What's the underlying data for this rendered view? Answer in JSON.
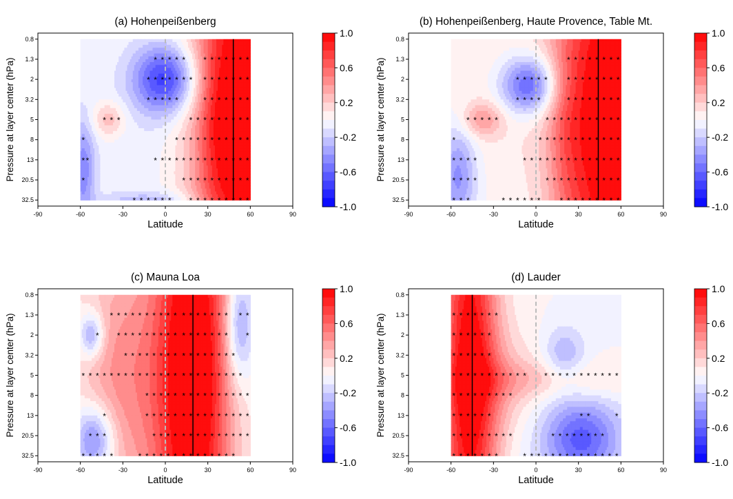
{
  "figure": {
    "colorbar_ticks": [
      "1.0",
      "0.6",
      "0.2",
      "-0.2",
      "-0.6",
      "-1.0"
    ],
    "colorbar_tick_values": [
      1.0,
      0.6,
      0.2,
      -0.2,
      -0.6,
      -1.0
    ],
    "colors": {
      "positive": "#ff0000",
      "negative": "#0000ff",
      "neutral": "#ffffff",
      "star": "#000000",
      "station_line": "#000000",
      "equator_line": "#bbbbbb"
    }
  },
  "chart_data": [
    {
      "type": "heatmap",
      "title": "(a) Hohenpeißenberg",
      "xlabel": "Latitude",
      "ylabel": "Pressure at layer center (hPa)",
      "x_ticks": [
        -90,
        -60,
        -30,
        0,
        30,
        60,
        90
      ],
      "y_ticks": [
        "0.8",
        "1.3",
        "2",
        "3.2",
        "5",
        "8",
        "13",
        "20.5",
        "32.5"
      ],
      "xlim": [
        -90,
        90
      ],
      "x_data_range": [
        -60,
        60
      ],
      "zlim": [
        -1,
        1
      ],
      "station_latitudes": [
        48
      ],
      "correlation_blobs": [
        {
          "x": 50,
          "y": 4,
          "sx": 22,
          "sy": 9,
          "value": 1.0
        },
        {
          "x": 58,
          "y": 4,
          "sx": 8,
          "sy": 9,
          "value": 0.25
        },
        {
          "x": 35,
          "y": 4,
          "sx": 8,
          "sy": 3,
          "value": 0.15
        },
        {
          "x": 0,
          "y": 2,
          "sx": 16,
          "sy": 1.2,
          "value": -0.75
        },
        {
          "x": -58,
          "y": 6.5,
          "sx": 6,
          "sy": 1.8,
          "value": -0.45
        },
        {
          "x": -40,
          "y": 4,
          "sx": 8,
          "sy": 0.6,
          "value": 0.3
        },
        {
          "x": -10,
          "y": 8.2,
          "sx": 25,
          "sy": 0.4,
          "value": -0.3
        },
        {
          "x": -20,
          "y": 4.5,
          "sx": 30,
          "sy": 4,
          "value": -0.06
        }
      ],
      "significance_markers": [
        {
          "y": 1,
          "x": [
            -7,
            -2,
            3,
            8,
            13,
            28,
            33,
            38,
            43,
            48,
            53,
            58
          ]
        },
        {
          "y": 2,
          "x": [
            -12,
            -7,
            -2,
            3,
            8,
            13,
            18,
            28,
            33,
            38,
            43,
            48,
            53,
            58
          ]
        },
        {
          "y": 3,
          "x": [
            -12,
            -7,
            -2,
            3,
            8,
            28,
            33,
            38,
            43,
            48,
            53,
            58
          ]
        },
        {
          "y": 4,
          "x": [
            -43,
            -38,
            -33,
            18,
            23,
            28,
            33,
            38,
            43,
            48,
            53,
            58
          ]
        },
        {
          "y": 5,
          "x": [
            -58,
            8,
            13,
            18,
            23,
            28,
            33,
            38,
            43,
            48,
            53,
            58
          ]
        },
        {
          "y": 6,
          "x": [
            -58,
            -55,
            -7,
            -2,
            3,
            8,
            13,
            18,
            23,
            28,
            33,
            38,
            43,
            48,
            53,
            58
          ]
        },
        {
          "y": 7,
          "x": [
            -58,
            13,
            18,
            23,
            28,
            33,
            38,
            43,
            48,
            53,
            58
          ]
        },
        {
          "y": 8,
          "x": [
            -22,
            -17,
            -12,
            -7,
            -2,
            3,
            18,
            23,
            28,
            33,
            38,
            43,
            48,
            53,
            58
          ]
        }
      ]
    },
    {
      "type": "heatmap",
      "title": "(b) Hohenpeißenberg, Haute Provence, Table Mt.",
      "xlabel": "Latitude",
      "ylabel": "Pressure at layer center (hPa)",
      "x_ticks": [
        -90,
        -60,
        -30,
        0,
        30,
        60,
        90
      ],
      "y_ticks": [
        "0.8",
        "1.3",
        "2",
        "3.2",
        "5",
        "8",
        "13",
        "20.5",
        "32.5"
      ],
      "xlim": [
        -90,
        90
      ],
      "x_data_range": [
        -60,
        60
      ],
      "zlim": [
        -1,
        1
      ],
      "station_latitudes": [
        44
      ],
      "correlation_blobs": [
        {
          "x": 45,
          "y": 4,
          "sx": 22,
          "sy": 9,
          "value": 1.0
        },
        {
          "x": 58,
          "y": 4,
          "sx": 8,
          "sy": 9,
          "value": 0.2
        },
        {
          "x": 20,
          "y": 4.5,
          "sx": 8,
          "sy": 3,
          "value": 0.15
        },
        {
          "x": -5,
          "y": 2.3,
          "sx": 14,
          "sy": 1.0,
          "value": -0.7
        },
        {
          "x": -55,
          "y": 6.8,
          "sx": 9,
          "sy": 1.8,
          "value": -0.45
        },
        {
          "x": -38,
          "y": 4,
          "sx": 10,
          "sy": 0.6,
          "value": 0.35
        },
        {
          "x": -20,
          "y": 2.5,
          "sx": 40,
          "sy": 4,
          "value": 0.08
        }
      ],
      "significance_markers": [
        {
          "y": 1,
          "x": [
            23,
            28,
            33,
            38,
            43,
            48,
            53,
            58
          ]
        },
        {
          "y": 2,
          "x": [
            -13,
            -8,
            -3,
            2,
            7,
            23,
            28,
            33,
            38,
            43,
            48,
            53,
            58
          ]
        },
        {
          "y": 3,
          "x": [
            -13,
            -8,
            -3,
            2,
            23,
            28,
            33,
            38,
            43,
            48,
            53,
            58
          ]
        },
        {
          "y": 4,
          "x": [
            -48,
            -43,
            -38,
            -33,
            -28,
            8,
            13,
            18,
            23,
            28,
            33,
            38,
            43,
            48,
            53,
            58
          ]
        },
        {
          "y": 5,
          "x": [
            -58,
            3,
            8,
            13,
            18,
            23,
            28,
            33,
            38,
            43,
            48,
            53,
            58
          ]
        },
        {
          "y": 6,
          "x": [
            -58,
            -53,
            -48,
            -43,
            -8,
            -3,
            3,
            8,
            13,
            18,
            23,
            28,
            33,
            38,
            43,
            48,
            53,
            58
          ]
        },
        {
          "y": 7,
          "x": [
            -58,
            -53,
            -48,
            -43,
            8,
            13,
            18,
            23,
            28,
            33,
            38,
            43,
            48,
            53,
            58
          ]
        },
        {
          "y": 8,
          "x": [
            -58,
            -53,
            -48,
            -23,
            -18,
            -13,
            -8,
            -3,
            2,
            18,
            23,
            28,
            33,
            38,
            43,
            48,
            53,
            58
          ]
        }
      ]
    },
    {
      "type": "heatmap",
      "title": "(c) Mauna Loa",
      "xlabel": "Latitude",
      "ylabel": "Pressure at layer center (hPa)",
      "x_ticks": [
        -90,
        -60,
        -30,
        0,
        30,
        60,
        90
      ],
      "y_ticks": [
        "0.8",
        "1.3",
        "2",
        "3.2",
        "5",
        "8",
        "13",
        "20.5",
        "32.5"
      ],
      "xlim": [
        -90,
        90
      ],
      "x_data_range": [
        -60,
        60
      ],
      "zlim": [
        -1,
        1
      ],
      "station_latitudes": [
        19.5
      ],
      "correlation_blobs": [
        {
          "x": 20,
          "y": 4,
          "sx": 18,
          "sy": 9,
          "value": 1.0
        },
        {
          "x": 0,
          "y": 4,
          "sx": 30,
          "sy": 9,
          "value": 0.25
        },
        {
          "x": -35,
          "y": 4,
          "sx": 20,
          "sy": 4,
          "value": 0.3
        },
        {
          "x": -52,
          "y": 2,
          "sx": 6,
          "sy": 0.8,
          "value": -0.5
        },
        {
          "x": -50,
          "y": 7.2,
          "sx": 10,
          "sy": 1.2,
          "value": -0.6
        },
        {
          "x": 52,
          "y": 1.5,
          "sx": 7,
          "sy": 2,
          "value": -0.5
        }
      ],
      "significance_markers": [
        {
          "y": 1,
          "x": [
            -38,
            -33,
            -28,
            -23,
            -18,
            -13,
            -8,
            -3,
            2,
            7,
            13,
            18,
            23,
            28,
            33,
            38,
            43,
            53,
            58
          ]
        },
        {
          "y": 2,
          "x": [
            -48,
            -33,
            -28,
            -23,
            -18,
            -13,
            -8,
            -3,
            2,
            7,
            13,
            18,
            23,
            28,
            33,
            38,
            43,
            58
          ]
        },
        {
          "y": 3,
          "x": [
            -28,
            -23,
            -18,
            -13,
            -8,
            -3,
            2,
            7,
            13,
            18,
            23,
            28,
            33,
            38,
            43,
            48
          ]
        },
        {
          "y": 4,
          "x": [
            -58,
            -53,
            -48,
            -43,
            -38,
            -33,
            -28,
            -23,
            -18,
            -13,
            -8,
            -3,
            2,
            7,
            13,
            18,
            23,
            28,
            33,
            38,
            43,
            48,
            53
          ]
        },
        {
          "y": 5,
          "x": [
            -13,
            -8,
            -3,
            2,
            7,
            13,
            18,
            23,
            28,
            33,
            38,
            43,
            48,
            53,
            58
          ]
        },
        {
          "y": 6,
          "x": [
            -43,
            -13,
            -8,
            -3,
            2,
            7,
            13,
            18,
            23,
            28,
            33,
            38,
            43,
            48,
            53,
            58
          ]
        },
        {
          "y": 7,
          "x": [
            -53,
            -48,
            -43,
            -8,
            -3,
            2,
            7,
            13,
            18,
            23,
            28,
            33,
            38,
            43,
            48,
            53,
            58
          ]
        },
        {
          "y": 8,
          "x": [
            -58,
            -53,
            -48,
            -43,
            -38,
            -18,
            -13,
            -8,
            -3,
            2,
            7,
            13,
            18,
            23,
            28,
            33,
            38,
            43,
            48
          ]
        }
      ]
    },
    {
      "type": "heatmap",
      "title": "(d) Lauder",
      "xlabel": "Latitude",
      "ylabel": "Pressure at layer center (hPa)",
      "x_ticks": [
        -90,
        -60,
        -30,
        0,
        30,
        60,
        90
      ],
      "y_ticks": [
        "0.8",
        "1.3",
        "2",
        "3.2",
        "5",
        "8",
        "13",
        "20.5",
        "32.5"
      ],
      "xlim": [
        -90,
        90
      ],
      "x_data_range": [
        -60,
        60
      ],
      "zlim": [
        -1,
        1
      ],
      "station_latitudes": [
        -45
      ],
      "correlation_blobs": [
        {
          "x": -47,
          "y": 4,
          "sx": 14,
          "sy": 9,
          "value": 1.0
        },
        {
          "x": -25,
          "y": 4.5,
          "sx": 20,
          "sy": 2,
          "value": 0.2
        },
        {
          "x": 10,
          "y": 4.2,
          "sx": 50,
          "sy": 0.7,
          "value": 0.22
        },
        {
          "x": 20,
          "y": 3,
          "sx": 10,
          "sy": 1,
          "value": -0.3
        },
        {
          "x": 32,
          "y": 7.2,
          "sx": 18,
          "sy": 1.3,
          "value": -0.5
        },
        {
          "x": 30,
          "y": 7,
          "sx": 30,
          "sy": 2,
          "value": -0.15
        }
      ],
      "significance_markers": [
        {
          "y": 1,
          "x": [
            -58,
            -53,
            -48,
            -43,
            -38,
            -33,
            -28
          ]
        },
        {
          "y": 2,
          "x": [
            -58,
            -53,
            -48,
            -43,
            -38,
            -33
          ]
        },
        {
          "y": 3,
          "x": [
            -58,
            -53,
            -48,
            -43,
            -38,
            -33
          ]
        },
        {
          "y": 4,
          "x": [
            -58,
            -53,
            -48,
            -43,
            -38,
            -33,
            -28,
            -23,
            -18,
            -13,
            -8,
            7,
            12,
            17,
            22,
            27,
            32,
            37,
            42,
            47,
            52,
            57
          ]
        },
        {
          "y": 5,
          "x": [
            -58,
            -53,
            -48,
            -43,
            -38,
            -33,
            -28,
            -23,
            -18
          ]
        },
        {
          "y": 6,
          "x": [
            -58,
            -53,
            -48,
            -43,
            -38,
            -33,
            32,
            37,
            57
          ]
        },
        {
          "y": 7,
          "x": [
            -58,
            -53,
            -48,
            -43,
            -38,
            -33,
            -28,
            -23,
            -18,
            12,
            17,
            22,
            27,
            32,
            37,
            42,
            47
          ]
        },
        {
          "y": 8,
          "x": [
            -58,
            -53,
            -48,
            -43,
            -38,
            -33,
            -28,
            -8,
            -3,
            2,
            7,
            12,
            17,
            22,
            27,
            32,
            37,
            42,
            47,
            52,
            57
          ]
        }
      ]
    }
  ]
}
